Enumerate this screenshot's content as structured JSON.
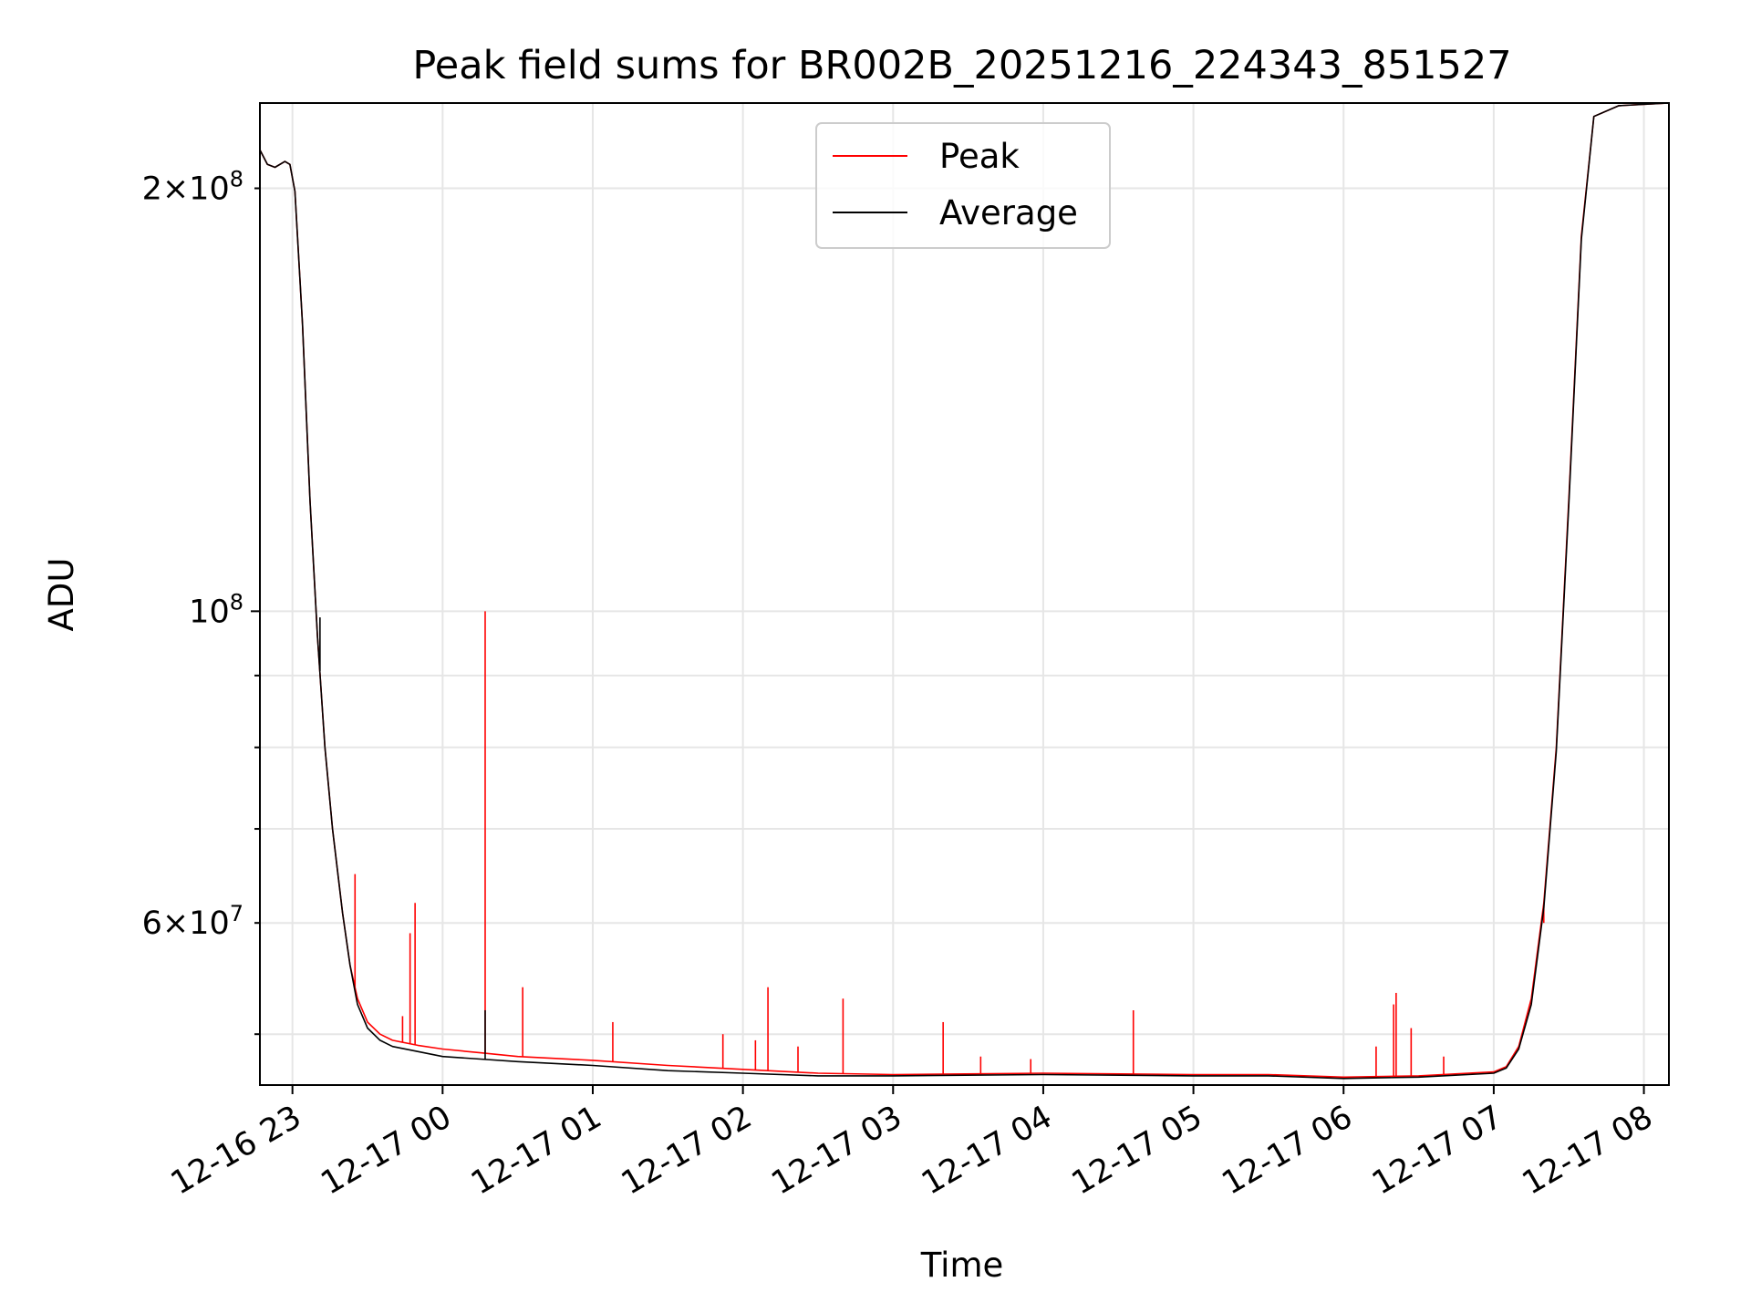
{
  "chart_data": {
    "type": "line",
    "title": "Peak field sums for BR002B_20251216_224343_851527",
    "xlabel": "Time",
    "ylabel": "ADU",
    "yscale": "log",
    "grid": true,
    "legend_placement": "upper center",
    "xlim": [
      "2025-12-16 22:47",
      "2025-12-17 08:10"
    ],
    "ylim": [
      46000000,
      230000000
    ],
    "x_ticks": [
      {
        "value": "2025-12-16 23:00",
        "label": "12-16 23"
      },
      {
        "value": "2025-12-17 00:00",
        "label": "12-17 00"
      },
      {
        "value": "2025-12-17 01:00",
        "label": "12-17 01"
      },
      {
        "value": "2025-12-17 02:00",
        "label": "12-17 02"
      },
      {
        "value": "2025-12-17 03:00",
        "label": "12-17 03"
      },
      {
        "value": "2025-12-17 04:00",
        "label": "12-17 04"
      },
      {
        "value": "2025-12-17 05:00",
        "label": "12-17 05"
      },
      {
        "value": "2025-12-17 06:00",
        "label": "12-17 06"
      },
      {
        "value": "2025-12-17 07:00",
        "label": "12-17 07"
      },
      {
        "value": "2025-12-17 08:00",
        "label": "12-17 08"
      }
    ],
    "y_major_ticks": [
      {
        "value": 100000000,
        "mantissa": "",
        "base": "10",
        "exponent": "8"
      }
    ],
    "y_minor_ticks": [
      {
        "value": 60000000,
        "mantissa": "6",
        "base": "10",
        "exponent": "7"
      },
      {
        "value": 200000000,
        "mantissa": "2",
        "base": "10",
        "exponent": "8"
      }
    ],
    "y_minor_unlabeled": [
      50000000,
      70000000,
      80000000,
      90000000
    ],
    "series": [
      {
        "name": "Peak",
        "color": "#ff0000",
        "points": [
          [
            "2025-12-16 22:47",
            213000000
          ],
          [
            "2025-12-16 22:50",
            208000000
          ],
          [
            "2025-12-16 22:53",
            207000000
          ],
          [
            "2025-12-16 22:57",
            209000000
          ],
          [
            "2025-12-16 22:59",
            208000000
          ],
          [
            "2025-12-16 23:01",
            199000000
          ],
          [
            "2025-12-16 23:04",
            160000000
          ],
          [
            "2025-12-16 23:07",
            120000000
          ],
          [
            "2025-12-16 23:10",
            96000000
          ],
          [
            "2025-12-16 23:13",
            80000000
          ],
          [
            "2025-12-16 23:16",
            70000000
          ],
          [
            "2025-12-16 23:20",
            61000000
          ],
          [
            "2025-12-16 23:23",
            56000000
          ],
          [
            "2025-12-16 23:26",
            53000000
          ],
          [
            "2025-12-16 23:30",
            51000000
          ],
          [
            "2025-12-16 23:35",
            50000000
          ],
          [
            "2025-12-16 23:40",
            49500000
          ],
          [
            "2025-12-16 23:50",
            49100000
          ],
          [
            "2025-12-17 00:00",
            48800000
          ],
          [
            "2025-12-17 00:15",
            48500000
          ],
          [
            "2025-12-17 00:30",
            48200000
          ],
          [
            "2025-12-17 01:00",
            47900000
          ],
          [
            "2025-12-17 01:30",
            47500000
          ],
          [
            "2025-12-17 02:00",
            47200000
          ],
          [
            "2025-12-17 02:30",
            46900000
          ],
          [
            "2025-12-17 03:00",
            46800000
          ],
          [
            "2025-12-17 04:00",
            46900000
          ],
          [
            "2025-12-17 05:00",
            46800000
          ],
          [
            "2025-12-17 05:30",
            46800000
          ],
          [
            "2025-12-17 06:00",
            46600000
          ],
          [
            "2025-12-17 06:30",
            46700000
          ],
          [
            "2025-12-17 07:00",
            47000000
          ],
          [
            "2025-12-17 07:05",
            47400000
          ],
          [
            "2025-12-17 07:10",
            49000000
          ],
          [
            "2025-12-17 07:15",
            53000000
          ],
          [
            "2025-12-17 07:20",
            62000000
          ],
          [
            "2025-12-17 07:25",
            80000000
          ],
          [
            "2025-12-17 07:30",
            120000000
          ],
          [
            "2025-12-17 07:35",
            185000000
          ],
          [
            "2025-12-17 07:40",
            225000000
          ],
          [
            "2025-12-17 07:50",
            229000000
          ],
          [
            "2025-12-17 08:10",
            230000000
          ]
        ],
        "spikes": [
          [
            "2025-12-16 23:25",
            65000000
          ],
          [
            "2025-12-16 23:47",
            59000000
          ],
          [
            "2025-12-16 23:49",
            62000000
          ],
          [
            "2025-12-16 23:44",
            51500000
          ],
          [
            "2025-12-17 00:17",
            100000000
          ],
          [
            "2025-12-17 00:32",
            54000000
          ],
          [
            "2025-12-17 01:08",
            51000000
          ],
          [
            "2025-12-17 01:52",
            50000000
          ],
          [
            "2025-12-17 02:05",
            49500000
          ],
          [
            "2025-12-17 02:10",
            54000000
          ],
          [
            "2025-12-17 02:22",
            49000000
          ],
          [
            "2025-12-17 02:40",
            53000000
          ],
          [
            "2025-12-17 03:20",
            51000000
          ],
          [
            "2025-12-17 03:35",
            48200000
          ],
          [
            "2025-12-17 03:55",
            48000000
          ],
          [
            "2025-12-17 04:36",
            52000000
          ],
          [
            "2025-12-17 06:13",
            49000000
          ],
          [
            "2025-12-17 06:20",
            52500000
          ],
          [
            "2025-12-17 06:21",
            53500000
          ],
          [
            "2025-12-17 06:27",
            50500000
          ],
          [
            "2025-12-17 06:40",
            48200000
          ],
          [
            "2025-12-17 07:12",
            50500000
          ],
          [
            "2025-12-17 07:20",
            60000000
          ]
        ]
      },
      {
        "name": "Average",
        "color": "#000000",
        "points": [
          [
            "2025-12-16 22:47",
            213000000
          ],
          [
            "2025-12-16 22:50",
            208000000
          ],
          [
            "2025-12-16 22:53",
            207000000
          ],
          [
            "2025-12-16 22:57",
            209000000
          ],
          [
            "2025-12-16 22:59",
            208000000
          ],
          [
            "2025-12-16 23:01",
            199000000
          ],
          [
            "2025-12-16 23:04",
            160000000
          ],
          [
            "2025-12-16 23:07",
            120000000
          ],
          [
            "2025-12-16 23:10",
            96000000
          ],
          [
            "2025-12-16 23:13",
            80000000
          ],
          [
            "2025-12-16 23:16",
            70000000
          ],
          [
            "2025-12-16 23:20",
            61000000
          ],
          [
            "2025-12-16 23:23",
            56000000
          ],
          [
            "2025-12-16 23:26",
            52500000
          ],
          [
            "2025-12-16 23:30",
            50500000
          ],
          [
            "2025-12-16 23:35",
            49500000
          ],
          [
            "2025-12-16 23:40",
            49000000
          ],
          [
            "2025-12-16 23:50",
            48600000
          ],
          [
            "2025-12-17 00:00",
            48200000
          ],
          [
            "2025-12-17 00:15",
            48000000
          ],
          [
            "2025-12-17 00:30",
            47800000
          ],
          [
            "2025-12-17 01:00",
            47500000
          ],
          [
            "2025-12-17 01:30",
            47100000
          ],
          [
            "2025-12-17 02:00",
            46900000
          ],
          [
            "2025-12-17 02:30",
            46700000
          ],
          [
            "2025-12-17 03:00",
            46700000
          ],
          [
            "2025-12-17 04:00",
            46800000
          ],
          [
            "2025-12-17 05:00",
            46700000
          ],
          [
            "2025-12-17 05:30",
            46700000
          ],
          [
            "2025-12-17 06:00",
            46500000
          ],
          [
            "2025-12-17 06:30",
            46600000
          ],
          [
            "2025-12-17 07:00",
            46900000
          ],
          [
            "2025-12-17 07:05",
            47300000
          ],
          [
            "2025-12-17 07:10",
            48800000
          ],
          [
            "2025-12-17 07:15",
            52500000
          ],
          [
            "2025-12-17 07:20",
            61500000
          ],
          [
            "2025-12-17 07:25",
            79500000
          ],
          [
            "2025-12-17 07:30",
            119000000
          ],
          [
            "2025-12-17 07:35",
            184000000
          ],
          [
            "2025-12-17 07:40",
            225000000
          ],
          [
            "2025-12-17 07:50",
            229000000
          ],
          [
            "2025-12-17 08:10",
            230000000
          ]
        ],
        "spikes": [
          [
            "2025-12-16 23:11",
            99000000
          ],
          [
            "2025-12-17 00:17",
            52000000
          ]
        ]
      }
    ]
  }
}
